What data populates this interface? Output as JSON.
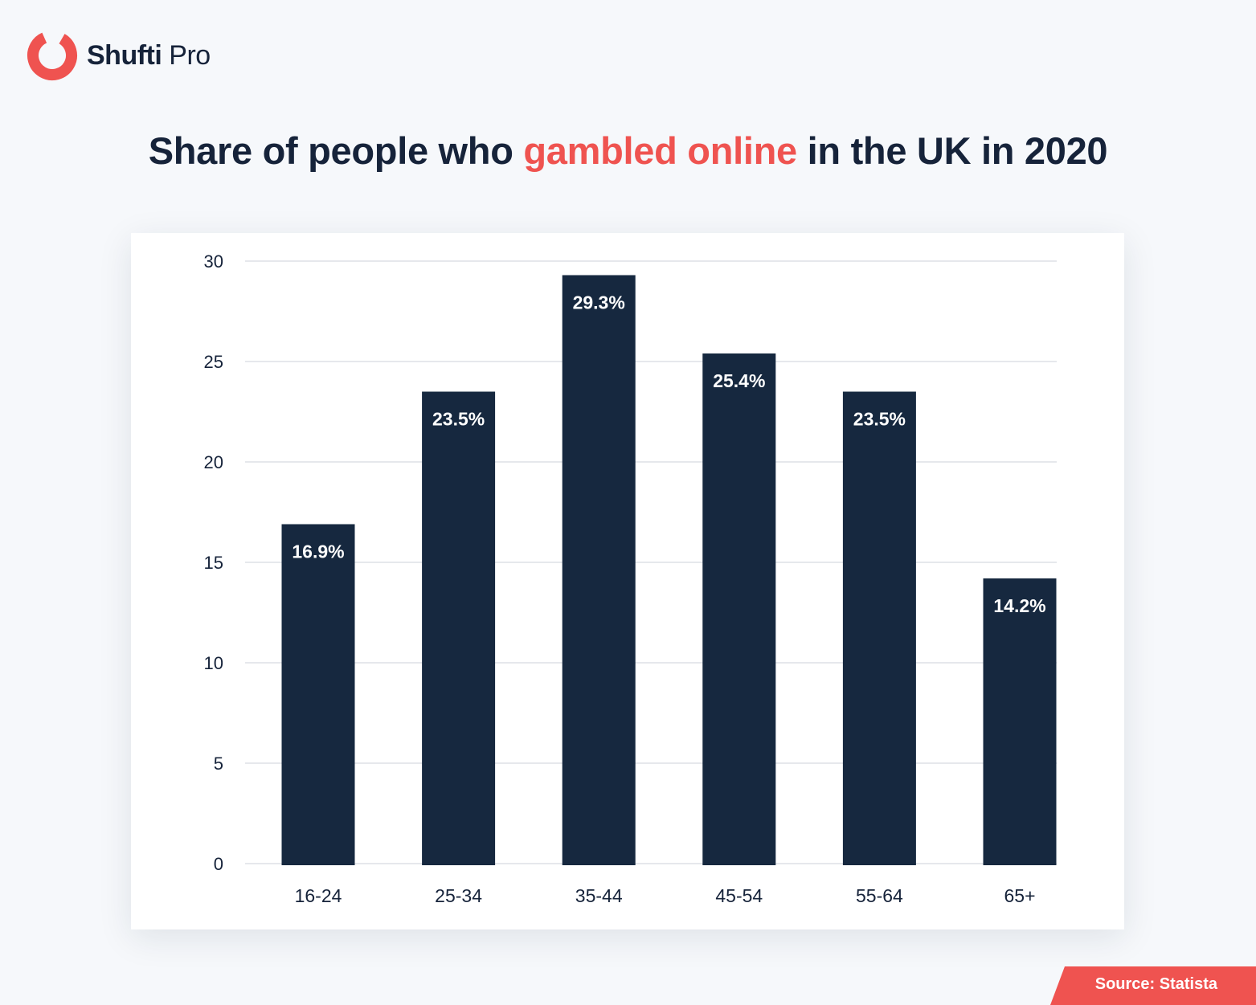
{
  "brand": {
    "name_bold": "Shufti",
    "name_light": "Pro",
    "accent_color": "#ef5350",
    "dark_color": "#16233a"
  },
  "title": {
    "before": "Share of people who ",
    "highlight": "gambled online",
    "after": " in the UK in 2020"
  },
  "source": "Source: Statista",
  "chart_data": {
    "type": "bar",
    "categories": [
      "16-24",
      "25-34",
      "35-44",
      "45-54",
      "55-64",
      "65+"
    ],
    "values": [
      16.9,
      23.5,
      29.3,
      25.4,
      23.5,
      14.2
    ],
    "data_labels": [
      "16.9%",
      "23.5%",
      "29.3%",
      "25.4%",
      "23.5%",
      "14.2%"
    ],
    "yticks": [
      0,
      5,
      10,
      15,
      20,
      25,
      30
    ],
    "ylim": [
      0,
      30
    ],
    "xlabel": "",
    "ylabel": "",
    "grid": true,
    "bar_color": "#16283f",
    "grid_color": "#e6e8ec"
  }
}
